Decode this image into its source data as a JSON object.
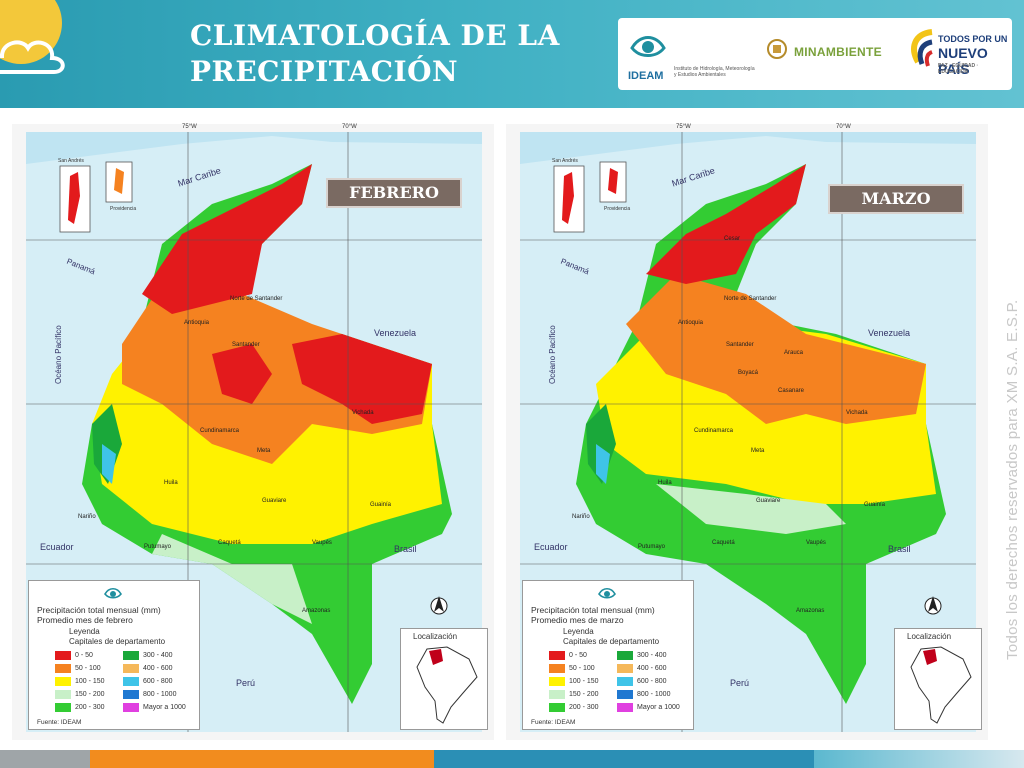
{
  "header": {
    "title_line1": "CLIMATOLOGÍA DE LA",
    "title_line2": "PRECIPITACIÓN"
  },
  "logos": {
    "ideam_name": "IDEAM",
    "ideam_sub": "Instituto de Hidrología, Meteorología y Estudios Ambientales",
    "minambiente": "MINAMBIENTE",
    "todos_l1": "TODOS POR UN",
    "todos_l2": "NUEVO PAÍS",
    "todos_l3": "PAZ · EQUIDAD · EDUCACIÓN"
  },
  "watermark": "Todos los derechos reservados para XM S.A. E.S.P.",
  "maps": [
    {
      "month_label": "FEBRERO",
      "legend_title_line1": "Precipitación total mensual (mm)",
      "legend_title_line2": "Promedio mes de febrero"
    },
    {
      "month_label": "MARZO",
      "legend_title_line1": "Precipitación total mensual (mm)",
      "legend_title_line2": "Promedio mes de marzo"
    }
  ],
  "map_labels": {
    "sea": "Mar Caribe",
    "ocean": "Océano Pacífico",
    "panama": "Panamá",
    "venezuela": "Venezuela",
    "ecuador": "Ecuador",
    "brasil": "Brasil",
    "peru": "Perú",
    "san_andres": "San Andrés",
    "providencia": "Providencia",
    "cesar": "Cesar",
    "norte_santander": "Norte de Santander",
    "santander": "Santander",
    "antioquia": "Antioquia",
    "boyaca": "Boyacá",
    "casanare": "Casanare",
    "arauca": "Arauca",
    "cundinamarca": "Cundinamarca",
    "vichada": "Vichada",
    "meta": "Meta",
    "guainia": "Guainía",
    "huila": "Huila",
    "guaviare": "Guaviare",
    "caqueta": "Caquetá",
    "vaupes": "Vaupés",
    "putumayo": "Putumayo",
    "narino": "Nariño",
    "amazonas": "Amazonas",
    "chocoo": "Chocó",
    "cauca": "Cauca",
    "tolima": "Tolima",
    "grid_top_w1": "75°W",
    "grid_top_w2": "70°W"
  },
  "legend": {
    "heading": "Leyenda",
    "caption": "Capitales de departamento",
    "source": "Fuente: IDEAM",
    "location_title": "Localización",
    "classes": [
      {
        "label": "0 - 50",
        "color": "#e31a1c"
      },
      {
        "label": "50 - 100",
        "color": "#f58220"
      },
      {
        "label": "100 - 150",
        "color": "#fff200"
      },
      {
        "label": "150 - 200",
        "color": "#c8f0c8"
      },
      {
        "label": "200 - 300",
        "color": "#33cc33"
      },
      {
        "label": "300 - 400",
        "color": "#1aa83a"
      },
      {
        "label": "400 - 600",
        "color": "#f5b85a"
      },
      {
        "label": "600 - 800",
        "color": "#3fc4e8"
      },
      {
        "label": "800 - 1000",
        "color": "#1f78d1"
      },
      {
        "label": "Mayor a 1000",
        "color": "#e040e0"
      }
    ]
  }
}
